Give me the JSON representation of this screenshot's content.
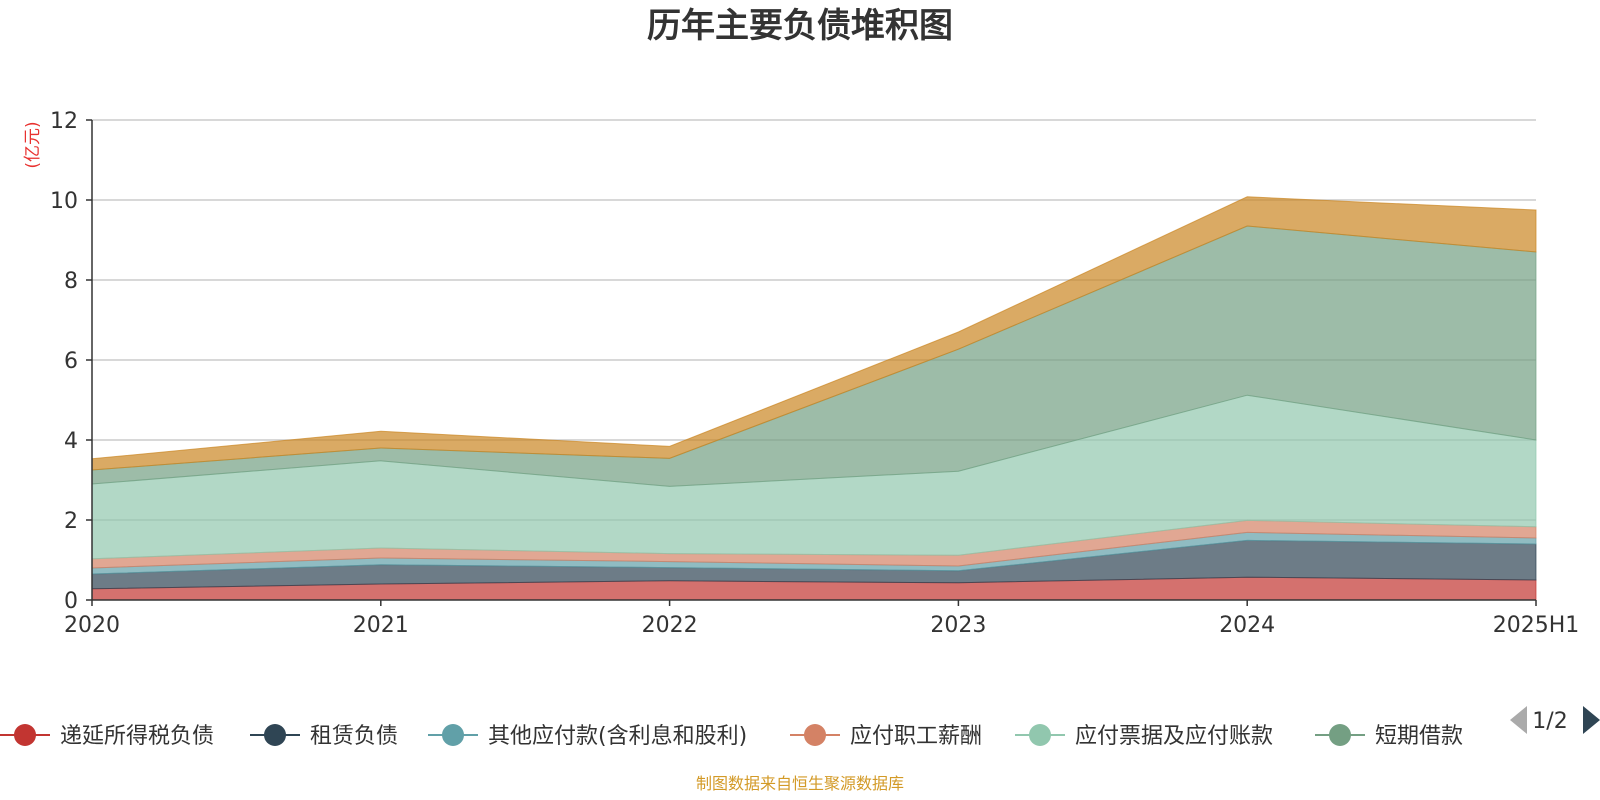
{
  "chart_data": {
    "type": "area",
    "stacked": true,
    "title": "历年主要负债堆积图",
    "unit_label": "(亿元)",
    "categories": [
      "2020",
      "2021",
      "2022",
      "2023",
      "2024",
      "2025H1"
    ],
    "ylim": [
      0,
      12
    ],
    "yticks": [
      "0",
      "2",
      "4",
      "6",
      "8",
      "10",
      "12"
    ],
    "grid": true,
    "legend_position": "bottom",
    "series": [
      {
        "name": "递延所得税负债",
        "color": "#c23531",
        "values": [
          0.28,
          0.4,
          0.48,
          0.43,
          0.57,
          0.5
        ],
        "in_legend": true
      },
      {
        "name": "租赁负债",
        "color": "#2f4554",
        "values": [
          0.37,
          0.48,
          0.33,
          0.3,
          0.92,
          0.9
        ],
        "in_legend": true
      },
      {
        "name": "其他应付款(含利息和股利)",
        "color": "#61a0a8",
        "values": [
          0.15,
          0.17,
          0.15,
          0.12,
          0.2,
          0.15
        ],
        "in_legend": true
      },
      {
        "name": "应付职工薪酬",
        "color": "#d48265",
        "values": [
          0.23,
          0.25,
          0.2,
          0.27,
          0.3,
          0.28
        ],
        "in_legend": true
      },
      {
        "name": "应付票据及应付账款",
        "color": "#91c7ae",
        "values": [
          1.87,
          2.18,
          1.68,
          2.1,
          3.13,
          2.17
        ],
        "in_legend": true
      },
      {
        "name": "短期借款",
        "color": "#749f83",
        "values": [
          0.35,
          0.32,
          0.7,
          3.05,
          4.23,
          4.7
        ],
        "in_legend": true
      },
      {
        "name": "",
        "color": "#ca8622",
        "values": [
          0.28,
          0.42,
          0.3,
          0.43,
          0.73,
          1.05
        ],
        "in_legend": false
      }
    ],
    "legend_pager": "1/2",
    "source_note": "制图数据来自恒生聚源数据库"
  },
  "colors": {
    "axis": "#333333",
    "grid": "#cccccc",
    "pager_arrow_active": "#2f4554",
    "pager_arrow_inactive": "#aaaaaa"
  }
}
